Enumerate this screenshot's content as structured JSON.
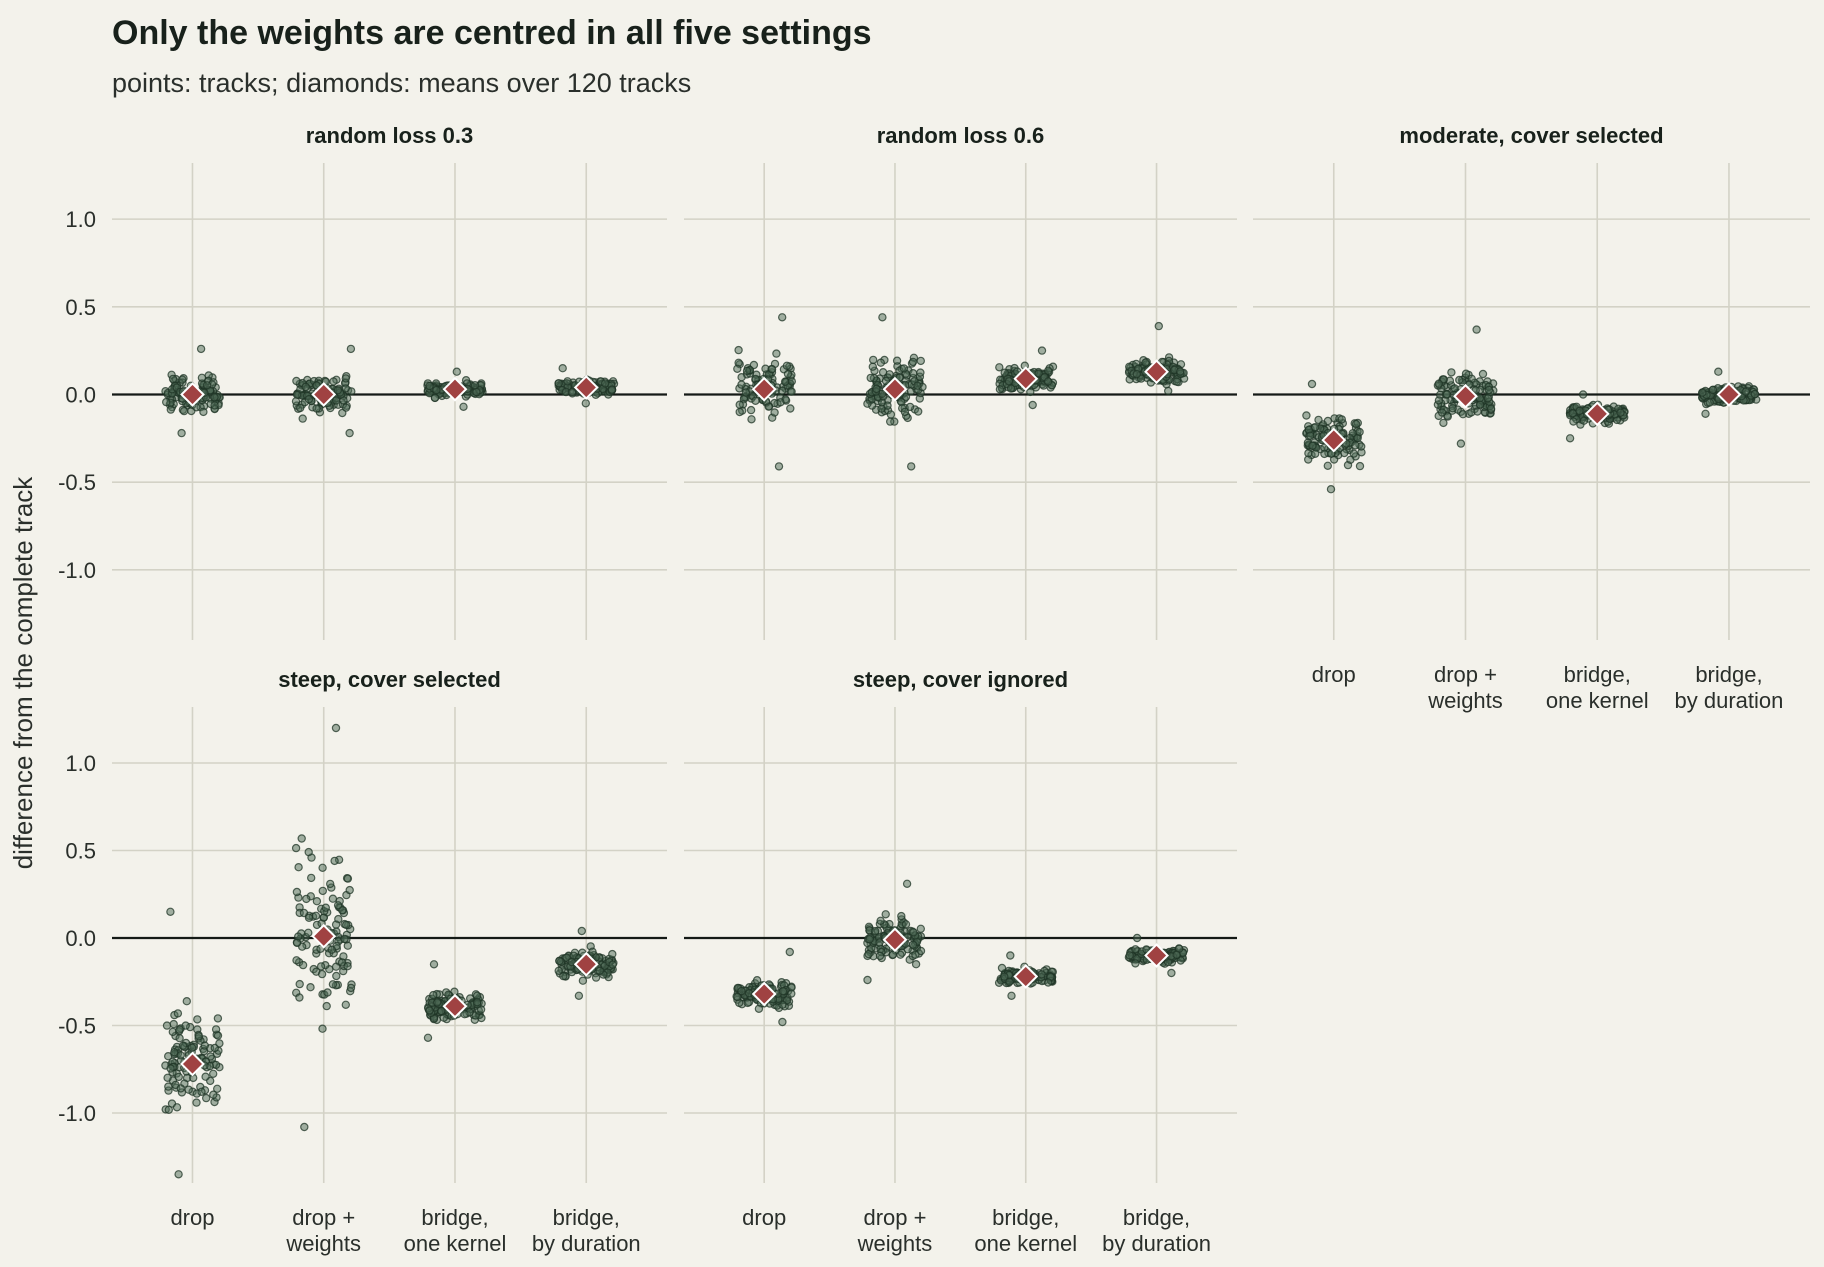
{
  "title": "Only the weights are centred in all five settings",
  "subtitle": "points: tracks; diamonds: means over 120 tracks",
  "ylabel": "difference from the complete track",
  "colors": {
    "background": "#f3f2eb",
    "point": "#4e6a55",
    "mean": "#a04242",
    "grid": "#d3d2c6",
    "zero_line": "#141a16"
  },
  "chart_data": {
    "type": "scatter",
    "subtype": "jittered strip plot, faceted",
    "n_tracks": 120,
    "categories": [
      "drop",
      "drop + weights",
      "bridge, one kernel",
      "bridge, by duration"
    ],
    "category_labels": [
      [
        "drop"
      ],
      [
        "drop +",
        "weights"
      ],
      [
        "bridge,",
        "one kernel"
      ],
      [
        "bridge,",
        "by duration"
      ]
    ],
    "ylabel": "difference from the complete track",
    "ylim": [
      -1.4,
      1.32
    ],
    "yticks": [
      1.0,
      0.5,
      0.0,
      -0.5,
      -1.0
    ],
    "ytick_labels": [
      "1.0",
      "0.5",
      "0.0",
      "-0.5",
      "-1.0"
    ],
    "reference_line": 0.0,
    "grid": true,
    "shared_y": true,
    "panels": [
      {
        "title": "random loss 0.3",
        "series": [
          {
            "category": "drop",
            "mean": 0.0,
            "min": -0.22,
            "max": 0.26
          },
          {
            "category": "drop + weights",
            "mean": 0.0,
            "min": -0.22,
            "max": 0.26
          },
          {
            "category": "bridge, one kernel",
            "mean": 0.03,
            "min": -0.07,
            "max": 0.13
          },
          {
            "category": "bridge, by duration",
            "mean": 0.04,
            "min": -0.05,
            "max": 0.15
          }
        ]
      },
      {
        "title": "random loss 0.6",
        "series": [
          {
            "category": "drop",
            "mean": 0.03,
            "min": -0.41,
            "max": 0.44
          },
          {
            "category": "drop + weights",
            "mean": 0.03,
            "min": -0.41,
            "max": 0.44
          },
          {
            "category": "bridge, one kernel",
            "mean": 0.09,
            "min": -0.06,
            "max": 0.25
          },
          {
            "category": "bridge, by duration",
            "mean": 0.13,
            "min": 0.02,
            "max": 0.39
          }
        ]
      },
      {
        "title": "moderate, cover selected",
        "series": [
          {
            "category": "drop",
            "mean": -0.26,
            "min": -0.54,
            "max": 0.06
          },
          {
            "category": "drop + weights",
            "mean": -0.01,
            "min": -0.28,
            "max": 0.37
          },
          {
            "category": "bridge, one kernel",
            "mean": -0.11,
            "min": -0.25,
            "max": 0.0
          },
          {
            "category": "bridge, by duration",
            "mean": 0.0,
            "min": -0.11,
            "max": 0.13
          }
        ]
      },
      {
        "title": "steep, cover selected",
        "series": [
          {
            "category": "drop",
            "mean": -0.72,
            "min": -1.35,
            "max": 0.15
          },
          {
            "category": "drop + weights",
            "mean": 0.01,
            "min": -1.08,
            "max": 1.2
          },
          {
            "category": "bridge, one kernel",
            "mean": -0.39,
            "min": -0.57,
            "max": -0.15
          },
          {
            "category": "bridge, by duration",
            "mean": -0.15,
            "min": -0.33,
            "max": 0.04
          }
        ]
      },
      {
        "title": "steep, cover ignored",
        "series": [
          {
            "category": "drop",
            "mean": -0.32,
            "min": -0.48,
            "max": -0.08
          },
          {
            "category": "drop + weights",
            "mean": -0.01,
            "min": -0.24,
            "max": 0.31
          },
          {
            "category": "bridge, one kernel",
            "mean": -0.22,
            "min": -0.33,
            "max": -0.1
          },
          {
            "category": "bridge, by duration",
            "mean": -0.1,
            "min": -0.2,
            "max": 0.0
          }
        ]
      }
    ]
  }
}
